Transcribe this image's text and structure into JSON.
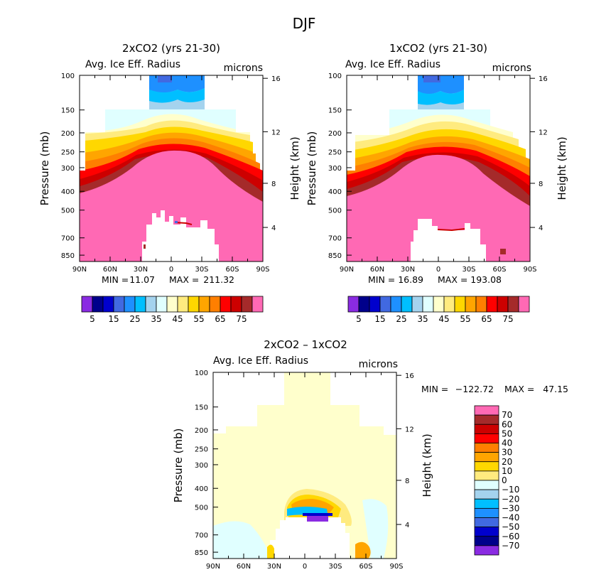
{
  "figure_title": "DJF",
  "chart_data": [
    {
      "type": "heatmap",
      "title": "2xCO2 (yrs 21-30)",
      "left_header": "Avg. Ice Eff. Radius",
      "right_header": "microns",
      "ylabel": "Pressure (mb)",
      "y2label": "Height (km)",
      "x_ticks": [
        "90N",
        "60N",
        "30N",
        "0",
        "30S",
        "60S",
        "90S"
      ],
      "y_ticks": [
        "100",
        "150",
        "200",
        "250",
        "300",
        "400",
        "500",
        "700",
        "850"
      ],
      "y2_ticks": [
        "16",
        "12",
        "8",
        "4"
      ],
      "min_label": "MIN =",
      "min_value": "11.07",
      "max_label": "MAX =",
      "max_value": "211.32",
      "colorbar_labels": [
        "5",
        "15",
        "25",
        "35",
        "45",
        "55",
        "65",
        "75"
      ],
      "colorbar_colors": [
        "#8a2be2",
        "#00008b",
        "#0000cd",
        "#4169e1",
        "#1e90ff",
        "#00bfff",
        "#a4d3ee",
        "#e0ffff",
        "#ffffcc",
        "#ffeb7f",
        "#ffd700",
        "#ffa500",
        "#ff7f00",
        "#ff0000",
        "#cd0000",
        "#a52a2a",
        "#ff69b4"
      ]
    },
    {
      "type": "heatmap",
      "title": "1xCO2 (yrs 21-30)",
      "left_header": "Avg. Ice Eff. Radius",
      "right_header": "microns",
      "ylabel": "Pressure (mb)",
      "y2label": "Height (km)",
      "x_ticks": [
        "90N",
        "60N",
        "30N",
        "0",
        "30S",
        "60S",
        "90S"
      ],
      "y_ticks": [
        "100",
        "150",
        "200",
        "250",
        "300",
        "400",
        "500",
        "700",
        "850"
      ],
      "y2_ticks": [
        "16",
        "12",
        "8",
        "4"
      ],
      "min_label": "MIN =",
      "min_value": "16.89",
      "max_label": "MAX =",
      "max_value": "193.08",
      "colorbar_labels": [
        "5",
        "15",
        "25",
        "35",
        "45",
        "55",
        "65",
        "75"
      ],
      "colorbar_colors": [
        "#8a2be2",
        "#00008b",
        "#0000cd",
        "#4169e1",
        "#1e90ff",
        "#00bfff",
        "#a4d3ee",
        "#e0ffff",
        "#ffffcc",
        "#ffeb7f",
        "#ffd700",
        "#ffa500",
        "#ff7f00",
        "#ff0000",
        "#cd0000",
        "#a52a2a",
        "#ff69b4"
      ]
    },
    {
      "type": "heatmap",
      "title": "2xCO2 – 1xCO2",
      "left_header": "Avg. Ice Eff. Radius",
      "right_header": "microns",
      "ylabel": "Pressure (mb)",
      "y2label": "Height (km)",
      "x_ticks": [
        "90N",
        "60N",
        "30N",
        "0",
        "30S",
        "60S",
        "90S"
      ],
      "y_ticks": [
        "100",
        "150",
        "200",
        "250",
        "300",
        "400",
        "500",
        "700",
        "850"
      ],
      "y2_ticks": [
        "16",
        "12",
        "8",
        "4"
      ],
      "min_label": "MIN =",
      "min_value": "−122.72",
      "max_label": "MAX =",
      "max_value": "47.15",
      "colorbar_labels": [
        "70",
        "60",
        "50",
        "40",
        "30",
        "20",
        "10",
        "0",
        "−10",
        "−20",
        "−30",
        "−40",
        "−50",
        "−60",
        "−70"
      ],
      "colorbar_colors": [
        "#ff69b4",
        "#a52a2a",
        "#cd0000",
        "#ff0000",
        "#ff7f00",
        "#ffa500",
        "#ffd700",
        "#ffeb7f",
        "#e0ffff",
        "#a4d3ee",
        "#00bfff",
        "#1e90ff",
        "#4169e1",
        "#0000cd",
        "#00008b",
        "#8a2be2"
      ]
    }
  ]
}
